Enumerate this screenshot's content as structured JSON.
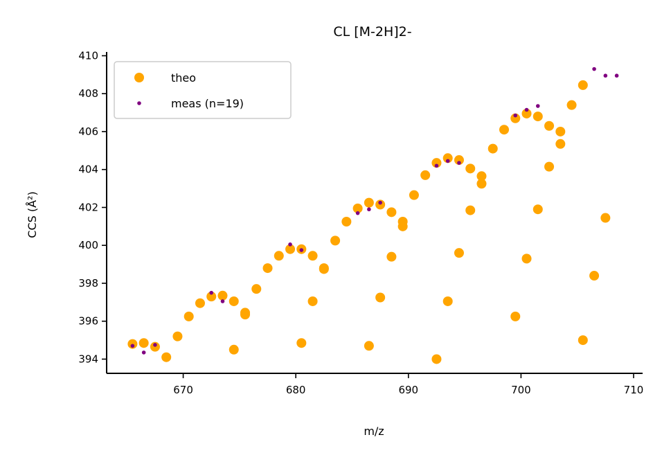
{
  "chart_data": {
    "type": "scatter",
    "title": "CL [M-2H]2-",
    "xlabel": "m/z",
    "ylabel": "CCS (Å²)",
    "xlim": [
      663.2,
      710.8
    ],
    "ylim": [
      393.25,
      410.2
    ],
    "xticks": [
      670,
      680,
      690,
      700,
      710
    ],
    "yticks": [
      394,
      396,
      398,
      400,
      402,
      404,
      406,
      408,
      410
    ],
    "grid": false,
    "legend_position": "top-left",
    "series": [
      {
        "name": "theo",
        "color": "#ffa500",
        "marker": "large",
        "points": [
          [
            665.5,
            394.8
          ],
          [
            666.5,
            394.85
          ],
          [
            667.5,
            394.65
          ],
          [
            668.5,
            394.1
          ],
          [
            669.5,
            395.2
          ],
          [
            670.5,
            396.25
          ],
          [
            671.5,
            396.95
          ],
          [
            672.5,
            397.3
          ],
          [
            673.5,
            397.35
          ],
          [
            674.5,
            397.05
          ],
          [
            674.5,
            394.5
          ],
          [
            675.5,
            396.35
          ],
          [
            675.5,
            396.45
          ],
          [
            676.5,
            397.7
          ],
          [
            677.5,
            398.8
          ],
          [
            678.5,
            399.45
          ],
          [
            679.5,
            399.8
          ],
          [
            680.5,
            399.8
          ],
          [
            680.5,
            394.85
          ],
          [
            681.5,
            399.45
          ],
          [
            681.5,
            397.05
          ],
          [
            682.5,
            398.8
          ],
          [
            682.5,
            398.75
          ],
          [
            683.5,
            400.25
          ],
          [
            684.5,
            401.25
          ],
          [
            685.5,
            401.95
          ],
          [
            686.5,
            402.25
          ],
          [
            686.5,
            394.7
          ],
          [
            687.5,
            402.15
          ],
          [
            687.5,
            397.25
          ],
          [
            688.5,
            401.75
          ],
          [
            688.5,
            399.4
          ],
          [
            689.5,
            401.25
          ],
          [
            689.5,
            401.0
          ],
          [
            690.5,
            402.65
          ],
          [
            691.5,
            403.7
          ],
          [
            692.5,
            404.35
          ],
          [
            692.5,
            394.0
          ],
          [
            693.5,
            404.6
          ],
          [
            693.5,
            397.05
          ],
          [
            694.5,
            404.5
          ],
          [
            694.5,
            399.6
          ],
          [
            695.5,
            404.05
          ],
          [
            695.5,
            401.85
          ],
          [
            696.5,
            403.65
          ],
          [
            696.5,
            403.25
          ],
          [
            697.5,
            405.1
          ],
          [
            698.5,
            406.1
          ],
          [
            699.5,
            406.7
          ],
          [
            699.5,
            396.25
          ],
          [
            700.5,
            406.95
          ],
          [
            700.5,
            399.3
          ],
          [
            701.5,
            406.8
          ],
          [
            701.5,
            401.9
          ],
          [
            702.5,
            406.3
          ],
          [
            702.5,
            404.15
          ],
          [
            703.5,
            406.0
          ],
          [
            703.5,
            405.35
          ],
          [
            704.5,
            407.4
          ],
          [
            705.5,
            408.45
          ],
          [
            705.5,
            395.0
          ],
          [
            706.5,
            398.4
          ],
          [
            707.5,
            401.45
          ]
        ]
      },
      {
        "name": "meas (n=19)",
        "color": "#800080",
        "marker": "small",
        "points": [
          [
            665.5,
            394.7
          ],
          [
            666.5,
            394.35
          ],
          [
            667.5,
            394.75
          ],
          [
            672.5,
            397.5
          ],
          [
            673.5,
            397.05
          ],
          [
            679.5,
            400.05
          ],
          [
            680.5,
            399.75
          ],
          [
            685.5,
            401.7
          ],
          [
            686.5,
            401.9
          ],
          [
            687.5,
            402.25
          ],
          [
            692.5,
            404.2
          ],
          [
            693.5,
            404.45
          ],
          [
            694.5,
            404.35
          ],
          [
            699.5,
            406.85
          ],
          [
            700.5,
            407.15
          ],
          [
            701.5,
            407.35
          ],
          [
            706.5,
            409.3
          ],
          [
            707.5,
            408.95
          ],
          [
            708.5,
            408.95
          ]
        ]
      }
    ]
  }
}
